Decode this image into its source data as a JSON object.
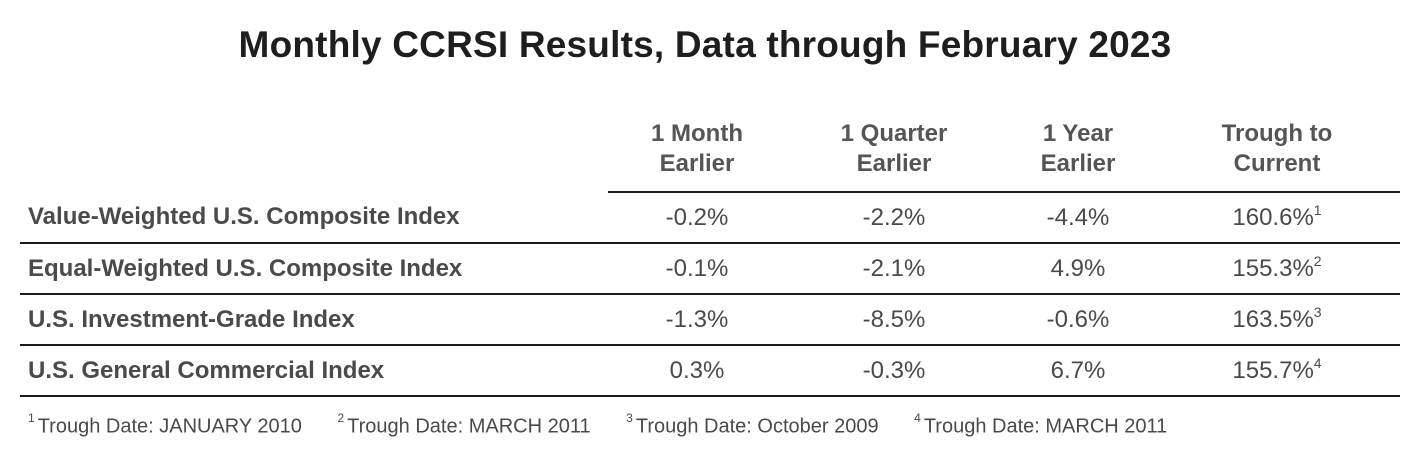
{
  "title": "Monthly CCRSI Results, Data through February 2023",
  "table": {
    "headers": [
      {
        "line1": "1 Month",
        "line2": "Earlier"
      },
      {
        "line1": "1 Quarter",
        "line2": "Earlier"
      },
      {
        "line1": "1 Year",
        "line2": "Earlier"
      },
      {
        "line1": "Trough to",
        "line2": "Current"
      }
    ],
    "rows": [
      {
        "label": "Value-Weighted U.S. Composite Index",
        "month": "-0.2%",
        "quarter": "-2.2%",
        "year": "-4.4%",
        "trough": "160.6%",
        "note": "1"
      },
      {
        "label": "Equal-Weighted U.S. Composite Index",
        "month": "-0.1%",
        "quarter": "-2.1%",
        "year": "4.9%",
        "trough": "155.3%",
        "note": "2"
      },
      {
        "label": "U.S. Investment-Grade Index",
        "month": "-1.3%",
        "quarter": "-8.5%",
        "year": "-0.6%",
        "trough": "163.5%",
        "note": "3"
      },
      {
        "label": "U.S. General Commercial Index",
        "month": "0.3%",
        "quarter": "-0.3%",
        "year": "6.7%",
        "trough": "155.7%",
        "note": "4"
      }
    ]
  },
  "footnotes": [
    {
      "mark": "1",
      "text": "Trough Date: JANUARY 2010"
    },
    {
      "mark": "2",
      "text": "Trough Date: MARCH 2011"
    },
    {
      "mark": "3",
      "text": "Trough Date: October 2009"
    },
    {
      "mark": "4",
      "text": "Trough Date: MARCH 2011"
    }
  ]
}
